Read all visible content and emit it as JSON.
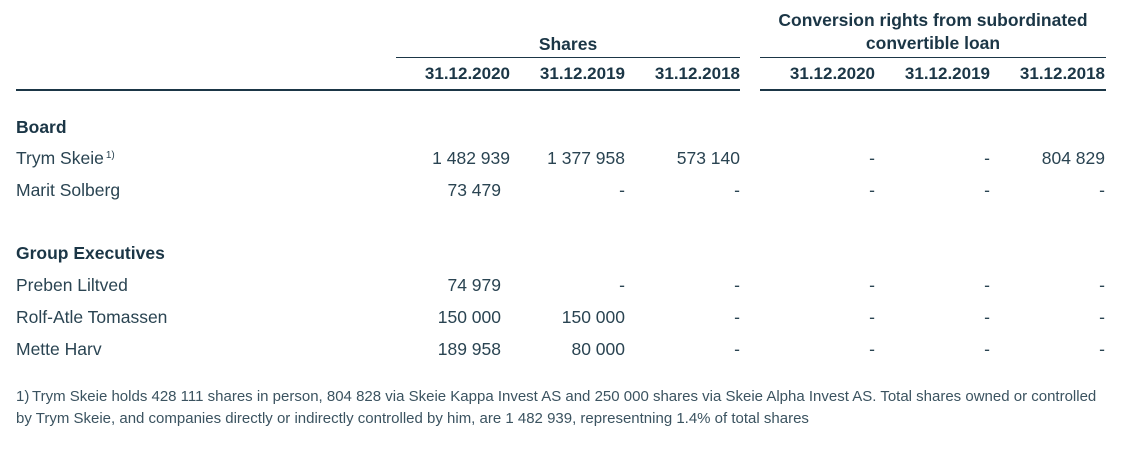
{
  "table": {
    "group_shares": "Shares",
    "group_conversion": "Conversion rights from subordinated convertible loan",
    "dates": [
      "31.12.2020",
      "31.12.2019",
      "31.12.2018",
      "31.12.2020",
      "31.12.2019",
      "31.12.2018"
    ],
    "sections": [
      {
        "title": "Board",
        "rows": [
          {
            "name": "Trym Skeie",
            "footnote": "1)",
            "values": [
              "1 482 939",
              "1 377 958",
              "573 140",
              "-",
              "-",
              "804 829"
            ]
          },
          {
            "name": "Marit Solberg",
            "footnote": "",
            "values": [
              "73 479",
              "-",
              "-",
              "-",
              "-",
              "-"
            ]
          }
        ]
      },
      {
        "title": "Group Executives",
        "rows": [
          {
            "name": "Preben Liltved",
            "footnote": "",
            "values": [
              "74 979",
              "-",
              "-",
              "-",
              "-",
              "-"
            ]
          },
          {
            "name": "Rolf-Atle Tomassen",
            "footnote": "",
            "values": [
              "150 000",
              "150 000",
              "-",
              "-",
              "-",
              "-"
            ]
          },
          {
            "name": "Mette Harv",
            "footnote": "",
            "values": [
              "189 958",
              "80 000",
              "-",
              "-",
              "-",
              "-"
            ]
          }
        ]
      }
    ]
  },
  "footnote": {
    "marker": "1)",
    "text": "Trym Skeie holds 428 111 shares in person, 804 828 via Skeie Kappa Invest AS and 250 000 shares via Skeie Alpha Invest AS.  Total shares owned or controlled by Trym Skeie, and companies directly or indirectly controlled by him, are 1 482 939, representning 1.4% of total shares"
  }
}
